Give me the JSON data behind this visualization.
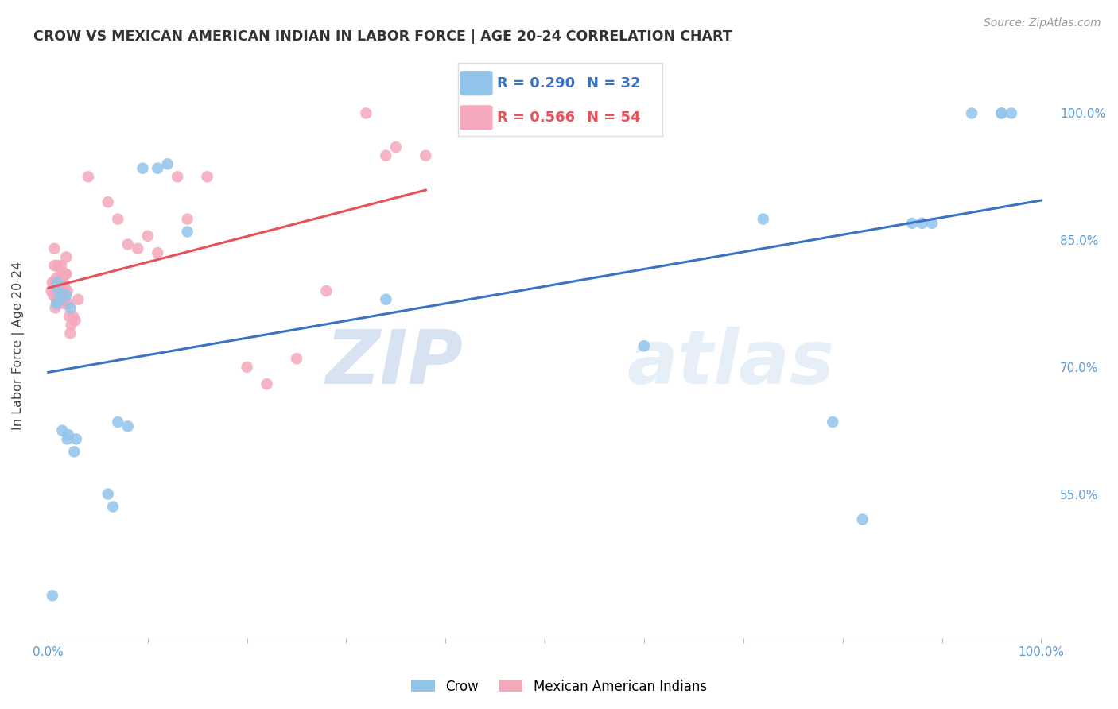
{
  "title": "CROW VS MEXICAN AMERICAN INDIAN IN LABOR FORCE | AGE 20-24 CORRELATION CHART",
  "source": "Source: ZipAtlas.com",
  "ylabel": "In Labor Force | Age 20-24",
  "crow_R": 0.29,
  "crow_N": 32,
  "mex_R": 0.566,
  "mex_N": 54,
  "crow_color": "#92C4EA",
  "mex_color": "#F4A8BB",
  "crow_line_color": "#3A72C4",
  "mex_line_color": "#E8505A",
  "xlim": [
    -0.015,
    1.015
  ],
  "ylim": [
    0.38,
    1.07
  ],
  "ytick_vals": [
    0.55,
    0.7,
    0.85,
    1.0
  ],
  "ytick_labels": [
    "55.0%",
    "70.0%",
    "85.0%",
    "100.0%"
  ],
  "xtick_vals": [
    0.0,
    0.1,
    0.2,
    0.3,
    0.4,
    0.5,
    0.6,
    0.7,
    0.8,
    0.9,
    1.0
  ],
  "xtick_labels": [
    "0.0%",
    "",
    "",
    "",
    "",
    "",
    "",
    "",
    "",
    "",
    "100.0%"
  ],
  "watermark_zip": "ZIP",
  "watermark_atlas": "atlas",
  "legend_crow_label": "Crow",
  "legend_mex_label": "Mexican American Indians",
  "crow_x": [
    0.004,
    0.008,
    0.009,
    0.01,
    0.012,
    0.014,
    0.018,
    0.019,
    0.02,
    0.022,
    0.026,
    0.028,
    0.06,
    0.065,
    0.07,
    0.08,
    0.095,
    0.11,
    0.12,
    0.14,
    0.34,
    0.6,
    0.72,
    0.79,
    0.82,
    0.87,
    0.88,
    0.89,
    0.93,
    0.96,
    0.96,
    0.97
  ],
  "crow_y": [
    0.43,
    0.775,
    0.8,
    0.79,
    0.78,
    0.625,
    0.785,
    0.615,
    0.62,
    0.77,
    0.6,
    0.615,
    0.55,
    0.535,
    0.635,
    0.63,
    0.935,
    0.935,
    0.94,
    0.86,
    0.78,
    0.725,
    0.875,
    0.635,
    0.52,
    0.87,
    0.87,
    0.87,
    1.0,
    1.0,
    1.0,
    1.0
  ],
  "mex_x": [
    0.003,
    0.004,
    0.005,
    0.006,
    0.006,
    0.007,
    0.007,
    0.008,
    0.008,
    0.009,
    0.009,
    0.01,
    0.01,
    0.011,
    0.011,
    0.012,
    0.012,
    0.013,
    0.013,
    0.014,
    0.014,
    0.015,
    0.015,
    0.016,
    0.016,
    0.017,
    0.018,
    0.018,
    0.019,
    0.02,
    0.021,
    0.022,
    0.023,
    0.025,
    0.027,
    0.03,
    0.04,
    0.06,
    0.07,
    0.08,
    0.09,
    0.1,
    0.11,
    0.13,
    0.14,
    0.16,
    0.2,
    0.22,
    0.25,
    0.28,
    0.32,
    0.34,
    0.35,
    0.38
  ],
  "mex_y": [
    0.79,
    0.8,
    0.785,
    0.84,
    0.82,
    0.8,
    0.77,
    0.805,
    0.78,
    0.82,
    0.795,
    0.79,
    0.775,
    0.8,
    0.78,
    0.81,
    0.79,
    0.82,
    0.8,
    0.81,
    0.79,
    0.8,
    0.78,
    0.795,
    0.775,
    0.81,
    0.83,
    0.81,
    0.79,
    0.775,
    0.76,
    0.74,
    0.75,
    0.76,
    0.755,
    0.78,
    0.925,
    0.895,
    0.875,
    0.845,
    0.84,
    0.855,
    0.835,
    0.925,
    0.875,
    0.925,
    0.7,
    0.68,
    0.71,
    0.79,
    1.0,
    0.95,
    0.96,
    0.95
  ]
}
